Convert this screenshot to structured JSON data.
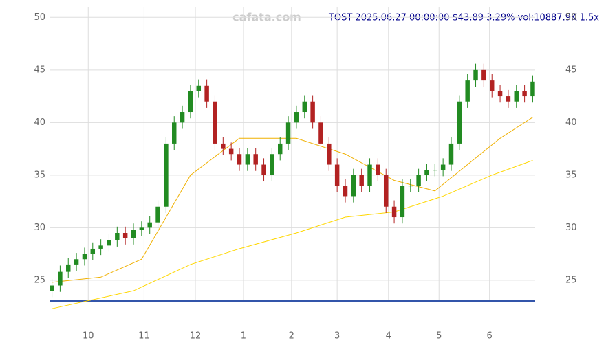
{
  "chart_data": {
    "type": "candlestick",
    "title": "TOST 2025.06.27 00:00:00 $43.89 3.29% vol:10887.9K 1.5x",
    "watermark": "cafata.com",
    "x": [
      0,
      1,
      2,
      3,
      4,
      5,
      6,
      7,
      8,
      9,
      10,
      11,
      12,
      13,
      14,
      15,
      16,
      17,
      18,
      19,
      20,
      21,
      22,
      23,
      24,
      25,
      26,
      27,
      28,
      29,
      30,
      31,
      32,
      33,
      34,
      35,
      36,
      37,
      38,
      39,
      40,
      41,
      42,
      43,
      44,
      45,
      46,
      47,
      48,
      49,
      50,
      51,
      52,
      53,
      54,
      55,
      56,
      57,
      58,
      59
    ],
    "open": [
      24,
      24.5,
      25.8,
      26.5,
      27,
      27.5,
      28,
      28.3,
      28.8,
      29.5,
      29,
      29.8,
      30,
      30.5,
      32,
      38,
      40,
      41,
      43,
      43.5,
      42,
      38,
      37.5,
      37,
      36,
      37,
      36,
      35,
      37,
      38,
      40,
      41,
      42,
      40,
      38,
      36,
      34,
      33,
      35,
      34,
      36,
      35,
      32,
      31,
      34,
      34,
      35,
      35.5,
      35.5,
      36,
      38,
      42,
      44,
      45,
      44,
      43,
      42.5,
      42,
      43,
      42.5
    ],
    "high": [
      25.1,
      26.4,
      27.1,
      27.6,
      28.1,
      28.6,
      28.9,
      29.4,
      30.1,
      30.1,
      30.4,
      30.6,
      31.1,
      32.6,
      38.6,
      40.6,
      41.6,
      43.6,
      44.1,
      44.1,
      42.6,
      38.6,
      38.1,
      37.6,
      37.6,
      37.6,
      36.6,
      37.6,
      38.6,
      40.6,
      41.6,
      42.6,
      42.6,
      40.6,
      38.6,
      36.6,
      34.6,
      35.6,
      35.6,
      36.6,
      36.6,
      35.6,
      32.6,
      34.6,
      34.6,
      35.6,
      36.1,
      36.1,
      36.6,
      38.6,
      42.6,
      44.6,
      45.6,
      45.6,
      44.6,
      43.6,
      43.1,
      43.6,
      43.6,
      44.49
    ],
    "low": [
      23.4,
      23.9,
      25.2,
      25.9,
      26.4,
      26.9,
      27.4,
      27.7,
      28.2,
      28.4,
      28.4,
      29.2,
      29.4,
      29.9,
      31.4,
      37.4,
      39.4,
      40.4,
      42.4,
      41.4,
      37.4,
      36.9,
      36.4,
      35.4,
      35.4,
      35.4,
      34.4,
      34.4,
      36.4,
      37.4,
      39.4,
      40.4,
      39.4,
      37.4,
      35.4,
      33.4,
      32.4,
      32.4,
      33.4,
      33.4,
      34.4,
      31.4,
      30.4,
      30.4,
      33.4,
      33.4,
      34.4,
      34.9,
      34.9,
      35.4,
      37.4,
      41.4,
      43.4,
      43.4,
      42.4,
      41.9,
      41.4,
      41.4,
      41.9,
      41.9
    ],
    "close": [
      24.5,
      25.8,
      26.5,
      27,
      27.5,
      28,
      28.3,
      28.8,
      29.5,
      29,
      29.8,
      30,
      30.5,
      32,
      38,
      40,
      41,
      43,
      43.5,
      42,
      38,
      37.5,
      37,
      36,
      37,
      36,
      35,
      37,
      38,
      40,
      41,
      42,
      40,
      38,
      36,
      34,
      33,
      35,
      34,
      36,
      35,
      32,
      31,
      34,
      34,
      35,
      35.5,
      35.5,
      36,
      38,
      42,
      44,
      45,
      44,
      43,
      42.5,
      42,
      43,
      42.5,
      43.89
    ],
    "up_color": "#228b22",
    "down_color": "#b22222",
    "lines": [
      {
        "color": "#ffd700",
        "x": [
          0,
          10,
          17,
          23,
          30,
          36,
          42,
          48,
          54,
          59
        ],
        "values": [
          22.3,
          24,
          26.5,
          28,
          29.5,
          31,
          31.5,
          33,
          35,
          36.4
        ]
      },
      {
        "color": "#f0b000",
        "x": [
          0,
          6,
          11,
          14,
          17,
          23,
          30,
          36,
          42,
          47,
          51,
          55,
          59
        ],
        "values": [
          24.8,
          25.3,
          27,
          31,
          35,
          38.5,
          38.5,
          37,
          34.5,
          33.5,
          36,
          38.5,
          40.5
        ]
      }
    ],
    "xlim": [
      -0.3,
      59.3
    ],
    "xticks": [
      {
        "value": 4.45,
        "label": "10"
      },
      {
        "value": 11.3,
        "label": "11"
      },
      {
        "value": 17.6,
        "label": "12"
      },
      {
        "value": 23.5,
        "label": "1"
      },
      {
        "value": 29.4,
        "label": "2"
      },
      {
        "value": 35,
        "label": "3"
      },
      {
        "value": 41.3,
        "label": "4"
      },
      {
        "value": 47.5,
        "label": "5"
      },
      {
        "value": 53.7,
        "label": "6"
      }
    ],
    "ylim": [
      22.9,
      51
    ],
    "yticks": [
      25,
      30,
      35,
      40,
      45,
      50
    ],
    "grid": true
  }
}
